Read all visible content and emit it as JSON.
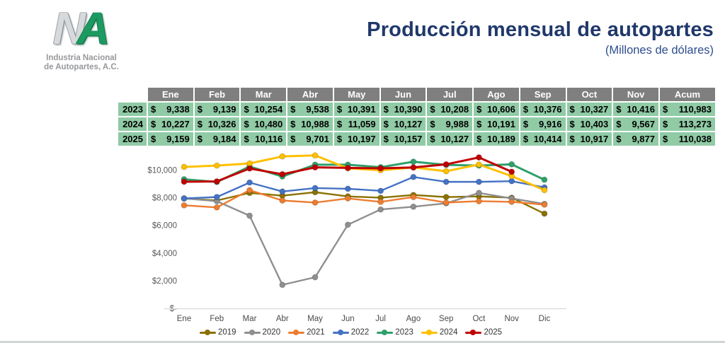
{
  "page": {
    "title": "Producción mensual de autopartes",
    "subtitle": "(Millones de dólares)",
    "logo": {
      "letters_n": "N",
      "letters_a": "A",
      "caption_line1": "Industria Nacional",
      "caption_line2": "de Autopartes, A.C."
    }
  },
  "colors": {
    "title_navy": "#20386b",
    "subtitle_navy": "#2d4d8e",
    "table_header_bg": "#7f7f7f",
    "table_header_text": "#ffffff",
    "table_cell_bg": "#90cba6",
    "table_cell_text": "#000000",
    "axis_line": "#d9d9d9"
  },
  "table": {
    "header": [
      "Ene",
      "Feb",
      "Mar",
      "Abr",
      "May",
      "Jun",
      "Jul",
      "Ago",
      "Sep",
      "Oct",
      "Nov",
      "Acum"
    ],
    "rows": [
      {
        "year": "2023",
        "cells": [
          "$ 9,338",
          "$ 9,139",
          "$10,254",
          "$ 9,538",
          "$10,391",
          "$10,390",
          "$10,208",
          "$10,606",
          "$10,376",
          "$10,327",
          "$10,416",
          "$110,983"
        ]
      },
      {
        "year": "2024",
        "cells": [
          "$10,227",
          "$10,326",
          "$10,480",
          "$10,988",
          "$11,059",
          "$10,127",
          "$ 9,988",
          "$10,191",
          "$ 9,916",
          "$10,403",
          "$9,567",
          "$113,273"
        ]
      },
      {
        "year": "2025",
        "cells": [
          "$ 9,159",
          "$ 9,184",
          "$10,116",
          "$ 9,701",
          "$10,197",
          "$10,157",
          "$10,127",
          "$10,189",
          "$10,414",
          "$10,917",
          "$9,877",
          "$110,038"
        ]
      }
    ]
  },
  "chart_data": {
    "type": "line",
    "x": [
      "Ene",
      "Feb",
      "Mar",
      "Abr",
      "May",
      "Jun",
      "Jul",
      "Ago",
      "Sep",
      "Oct",
      "Nov",
      "Dic"
    ],
    "ylim": [
      0,
      11500
    ],
    "grid": false,
    "legend_position": "bottom",
    "yticks": [
      {
        "value": 10000,
        "label": "$10,000"
      },
      {
        "value": 8000,
        "label": "$8,000"
      },
      {
        "value": 6000,
        "label": "$6,000"
      },
      {
        "value": 4000,
        "label": "$4,000"
      },
      {
        "value": 2000,
        "label": "$2,000"
      },
      {
        "value": 0,
        "label": "$-"
      }
    ],
    "series": [
      {
        "name": "2019",
        "color": "#8a7100",
        "line_width": 2.4,
        "values": [
          7950,
          7800,
          8350,
          8150,
          8400,
          8100,
          8000,
          8200,
          8050,
          8100,
          8000,
          6850
        ]
      },
      {
        "name": "2020",
        "color": "#8f8f8f",
        "line_width": 2.4,
        "values": [
          7950,
          7750,
          6700,
          1700,
          2250,
          6050,
          7150,
          7350,
          7600,
          8350,
          7950,
          7550
        ]
      },
      {
        "name": "2021",
        "color": "#ed7d31",
        "line_width": 2.4,
        "values": [
          7450,
          7300,
          8550,
          7800,
          7650,
          7950,
          7700,
          8050,
          7650,
          7750,
          7700,
          7500
        ]
      },
      {
        "name": "2022",
        "color": "#4472c4",
        "line_width": 2.4,
        "values": [
          7950,
          8050,
          9100,
          8450,
          8700,
          8650,
          8500,
          9500,
          9150,
          9150,
          9200,
          8750
        ]
      },
      {
        "name": "2023",
        "color": "#2fa06a",
        "line_width": 3,
        "values": [
          9338,
          9139,
          10254,
          9538,
          10391,
          10390,
          10208,
          10606,
          10376,
          10327,
          10416,
          9300
        ]
      },
      {
        "name": "2024",
        "color": "#ffc000",
        "line_width": 3,
        "values": [
          10227,
          10326,
          10480,
          10988,
          11059,
          10127,
          9988,
          10191,
          9916,
          10403,
          9567,
          8550
        ]
      },
      {
        "name": "2025",
        "color": "#c00000",
        "line_width": 3,
        "values": [
          9159,
          9184,
          10116,
          9701,
          10197,
          10157,
          10127,
          10189,
          10414,
          10917,
          9877,
          null
        ]
      }
    ]
  }
}
